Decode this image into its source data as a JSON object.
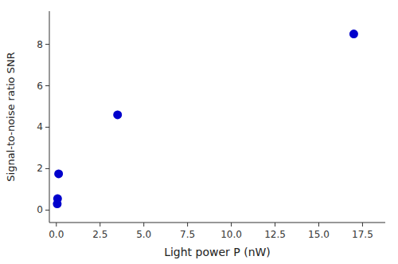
{
  "chart_data": {
    "type": "scatter",
    "xlabel": "Light power P (nW)",
    "ylabel": "Signal-to-noise ratio SNR",
    "x": [
      0.05,
      0.07,
      0.13,
      3.5,
      17.0
    ],
    "y": [
      0.3,
      0.55,
      1.75,
      4.6,
      8.5
    ],
    "color": "#0000CC",
    "xlim": [
      -0.4,
      18.8
    ],
    "ylim": [
      -0.6,
      9.6
    ],
    "xticks": [
      {
        "value": 0.0,
        "label": "0.0"
      },
      2.5,
      {
        "value": 5.0,
        "label": "5.0"
      },
      7.5,
      {
        "value": 10.0,
        "label": "10.0"
      },
      12.5,
      {
        "value": 15.0,
        "label": "15.0"
      },
      17.5
    ],
    "yticks": [
      0,
      2,
      4,
      6,
      8
    ],
    "grid": false
  }
}
